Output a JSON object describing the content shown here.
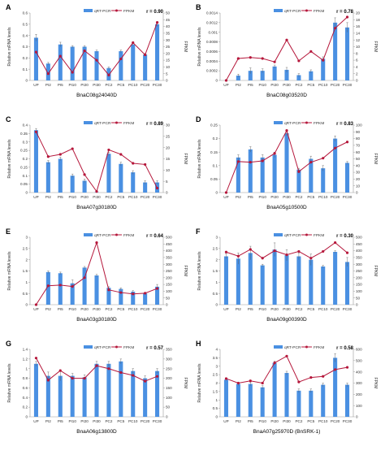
{
  "legend": {
    "bar_label": "qRT-PCR",
    "line_label": "FPKM"
  },
  "labels": {
    "left_axis": "Relative mRNA levels",
    "right_axis": "FPKM"
  },
  "colors": {
    "bar": "#4a90e2",
    "line": "#b5173b",
    "axis": "#9a9a9a"
  },
  "chart_data": [
    {
      "panel": "A",
      "gene": "BnaC08g24040D",
      "r_text": "r = 0.90",
      "type": "bar+line",
      "categories": [
        "UP",
        "PI2",
        "PI5",
        "PI10",
        "PI20",
        "PI30",
        "PC2",
        "PC5",
        "PC10",
        "PC20",
        "PC30"
      ],
      "left_ticks": [
        "0",
        "0.1",
        "0.2",
        "0.3",
        "0.4",
        "0.5",
        "0.6"
      ],
      "left_ylim": [
        0,
        0.6
      ],
      "right_ticks": [
        "0",
        "5",
        "10",
        "15",
        "20",
        "25",
        "30",
        "35",
        "40",
        "45",
        "50"
      ],
      "right_ylim": [
        0,
        50
      ],
      "bar_values": [
        0.38,
        0.15,
        0.32,
        0.3,
        0.3,
        0.26,
        0.11,
        0.26,
        0.32,
        0.23,
        0.5
      ],
      "bar_errors": [
        0.03,
        0.01,
        0.02,
        0.01,
        0.01,
        0.01,
        0.01,
        0.01,
        0.01,
        0.01,
        0.02
      ],
      "line_values": [
        21,
        5,
        18,
        6,
        22,
        15,
        4,
        16,
        28,
        19,
        43
      ]
    },
    {
      "panel": "B",
      "gene": "BnaC08g03520D",
      "r_text": "r = 0.78",
      "type": "bar+line",
      "categories": [
        "UP",
        "PI2",
        "PI5",
        "PI10",
        "PI20",
        "PI30",
        "PC2",
        "PC5",
        "PC10",
        "PC20",
        "PC30"
      ],
      "left_ticks": [
        "0",
        "0.0002",
        "0.0004",
        "0.0006",
        "0.0008",
        "0.001",
        "0.0012",
        "0.0014"
      ],
      "left_ylim": [
        0,
        0.0014
      ],
      "right_ticks": [
        "0",
        "2",
        "4",
        "6",
        "8",
        "10",
        "12",
        "14",
        "16",
        "18",
        "20"
      ],
      "right_ylim": [
        0,
        20
      ],
      "bar_values": [
        0,
        0.0001,
        0.0002,
        0.0002,
        0.00029,
        0.00022,
        0.00011,
        0.00019,
        0.00045,
        0.0012,
        0.0011
      ],
      "bar_errors": [
        0,
        3e-05,
        6e-05,
        4e-05,
        3e-05,
        5e-05,
        3e-05,
        3e-05,
        4e-05,
        0.0001,
        0.0001
      ],
      "line_values": [
        0,
        6.5,
        6.8,
        6.5,
        5.5,
        12,
        5.8,
        8.6,
        6,
        15.5,
        18.8
      ]
    },
    {
      "panel": "C",
      "gene": "BnaA07g30180D",
      "r_text": "r = 0.89",
      "type": "bar+line",
      "categories": [
        "UP",
        "PI2",
        "PI5",
        "PI10",
        "PI20",
        "PI30",
        "PC2",
        "PC5",
        "PC10",
        "PC20",
        "PC30"
      ],
      "left_ticks": [
        "0",
        "0.05",
        "0.1",
        "0.15",
        "0.2",
        "0.25",
        "0.3",
        "0.35",
        "0.4"
      ],
      "left_ylim": [
        0,
        0.4
      ],
      "right_ticks": [
        "0",
        "5",
        "10",
        "15",
        "20",
        "25",
        "30"
      ],
      "right_ylim": [
        0,
        30
      ],
      "bar_values": [
        0.37,
        0.18,
        0.2,
        0.1,
        0.07,
        0.002,
        0.23,
        0.17,
        0.12,
        0.06,
        0.06
      ],
      "bar_errors": [
        0.01,
        0.01,
        0.01,
        0.01,
        0.01,
        0.001,
        0.01,
        0.01,
        0.01,
        0.01,
        0.01
      ],
      "line_values": [
        27,
        16,
        17,
        19.5,
        8,
        0.5,
        19,
        17,
        13,
        12.5,
        2
      ]
    },
    {
      "panel": "D",
      "gene": "BnaA05g10500D",
      "r_text": "r = 0.83",
      "type": "bar+line",
      "categories": [
        "UP",
        "PI2",
        "PI5",
        "PI10",
        "PI20",
        "PI30",
        "PC2",
        "PC5",
        "PC10",
        "PC20",
        "PC30"
      ],
      "left_ticks": [
        "0",
        "0.05",
        "0.1",
        "0.15",
        "0.2",
        "0.25"
      ],
      "left_ylim": [
        0,
        0.25
      ],
      "right_ticks": [
        "0",
        "10",
        "20",
        "30",
        "40",
        "50",
        "60",
        "70",
        "80",
        "90",
        "100"
      ],
      "right_ylim": [
        0,
        100
      ],
      "bar_values": [
        0,
        0.13,
        0.16,
        0.13,
        0.14,
        0.22,
        0.085,
        0.125,
        0.09,
        0.2,
        0.11
      ],
      "bar_errors": [
        0,
        0.01,
        0.01,
        0.01,
        0.01,
        0.01,
        0.005,
        0.01,
        0.01,
        0.01,
        0.005
      ],
      "line_values": [
        0,
        46,
        45,
        47,
        58,
        92,
        31,
        45,
        51,
        66,
        75
      ]
    },
    {
      "panel": "E",
      "gene": "BnaA03g30180D",
      "r_text": "r = 0.64",
      "type": "bar+line",
      "categories": [
        "UP",
        "PI2",
        "PI5",
        "PI10",
        "PI20",
        "PI30",
        "PC2",
        "PC5",
        "PC10",
        "PC20",
        "PC30"
      ],
      "left_ticks": [
        "0",
        "0.5",
        "1",
        "1.5",
        "2",
        "2.5",
        "3"
      ],
      "left_ylim": [
        0,
        3
      ],
      "right_ticks": [
        "0",
        "50",
        "100",
        "150",
        "200",
        "250",
        "300",
        "350",
        "400",
        "450",
        "500"
      ],
      "right_ylim": [
        0,
        500
      ],
      "bar_values": [
        0,
        1.45,
        1.4,
        0.95,
        1.65,
        1.3,
        0.75,
        0.7,
        0.58,
        0.5,
        0.8
      ],
      "bar_errors": [
        0,
        0.05,
        0.05,
        0.15,
        0.05,
        0.05,
        0.05,
        0.05,
        0.05,
        0.05,
        0.1
      ],
      "line_values": [
        0,
        140,
        145,
        135,
        200,
        460,
        110,
        90,
        80,
        85,
        120
      ]
    },
    {
      "panel": "F",
      "gene": "BnaA09g00390D",
      "r_text": "r = 0.30",
      "type": "bar+line",
      "categories": [
        "UP",
        "PI2",
        "PI5",
        "PI10",
        "PI20",
        "PI30",
        "PC2",
        "PC5",
        "PC10",
        "PC20",
        "PC30"
      ],
      "left_ticks": [
        "0",
        "0.5",
        "1",
        "1.5",
        "2",
        "2.5",
        "3"
      ],
      "left_ylim": [
        0,
        3
      ],
      "right_ticks": [
        "0",
        "50",
        "100",
        "150",
        "200",
        "250",
        "300",
        "350",
        "400",
        "450",
        "500"
      ],
      "right_ylim": [
        0,
        500
      ],
      "bar_values": [
        2.15,
        2.05,
        2.3,
        1.75,
        2.45,
        2.2,
        2.15,
        2.0,
        1.7,
        2.35,
        1.9
      ],
      "bar_errors": [
        0.1,
        0.25,
        0.3,
        0.05,
        0.3,
        0.25,
        0.15,
        0.25,
        0.05,
        0.05,
        0.2
      ],
      "line_values": [
        390,
        360,
        410,
        345,
        400,
        370,
        395,
        345,
        395,
        460,
        385
      ]
    },
    {
      "panel": "G",
      "gene": "BnaA06g13800D",
      "r_text": "r = 0.57",
      "type": "bar+line",
      "categories": [
        "UP",
        "PI2",
        "PI5",
        "PI10",
        "PI20",
        "PI30",
        "PC2",
        "PC5",
        "PC10",
        "PC20",
        "PC30"
      ],
      "left_ticks": [
        "0",
        "0.2",
        "0.4",
        "0.6",
        "0.8",
        "1",
        "1.2",
        "1.4"
      ],
      "left_ylim": [
        0,
        1.4
      ],
      "right_ticks": [
        "0",
        "50",
        "100",
        "150",
        "200",
        "250",
        "300",
        "350"
      ],
      "right_ylim": [
        0,
        350
      ],
      "bar_values": [
        1.1,
        0.85,
        0.85,
        0.85,
        0.82,
        1.1,
        1.1,
        1.15,
        0.95,
        0.8,
        0.95
      ],
      "bar_errors": [
        0.05,
        0.08,
        0.1,
        0.05,
        0.05,
        0.05,
        0.05,
        0.05,
        0.05,
        0.05,
        0.05
      ],
      "line_values": [
        305,
        190,
        240,
        200,
        200,
        265,
        250,
        230,
        215,
        185,
        210
      ]
    },
    {
      "panel": "H",
      "gene": "BnaA07g25970D (BnSRK-1)",
      "r_text": "r = 0.58",
      "type": "bar+line",
      "categories": [
        "UP",
        "PI2",
        "PI5",
        "PI10",
        "PI20",
        "PI30",
        "PC2",
        "PC5",
        "PC10",
        "PC20",
        "PC30"
      ],
      "left_ticks": [
        "0",
        "0.5",
        "1",
        "1.5",
        "2",
        "2.5",
        "3",
        "3.5",
        "4"
      ],
      "left_ylim": [
        0,
        4
      ],
      "right_ticks": [
        "0",
        "100",
        "200",
        "300",
        "400",
        "500",
        "600"
      ],
      "right_ylim": [
        0,
        600
      ],
      "bar_values": [
        2.2,
        1.95,
        1.95,
        1.75,
        3.2,
        2.6,
        1.55,
        1.55,
        1.9,
        3.5,
        1.9
      ],
      "bar_errors": [
        0.05,
        0.1,
        0.1,
        0.1,
        0.1,
        0.1,
        0.1,
        0.1,
        0.1,
        0.25,
        0.1
      ],
      "line_values": [
        340,
        300,
        320,
        300,
        480,
        540,
        310,
        350,
        360,
        420,
        440
      ]
    }
  ]
}
